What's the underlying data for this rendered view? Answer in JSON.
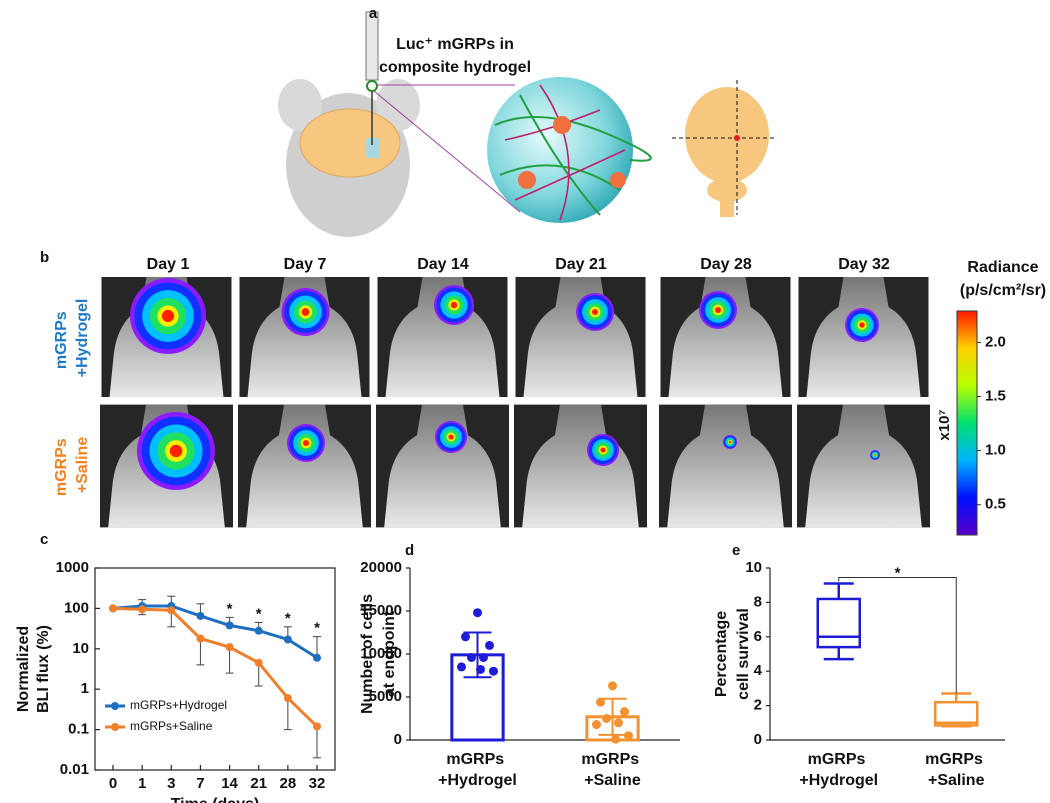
{
  "panel_a": {
    "label": "a",
    "caption": [
      "Luc⁺ mGRPs in",
      "composite hydrogel"
    ]
  },
  "panel_b": {
    "label": "b",
    "days": [
      "Day 1",
      "Day 7",
      "Day 14",
      "Day 21",
      "Day 28",
      "Day 32"
    ],
    "rows": [
      {
        "name": "mGRPs +Hydrogel",
        "color": "#1f78c8"
      },
      {
        "name": "mGRPs +Saline",
        "color": "#f4801f"
      }
    ]
  },
  "chart_data": [
    {
      "type": "colorbar",
      "title": [
        "Radiance",
        "(p/s/cm²/sr)"
      ],
      "scale_label": "x10⁷",
      "ylim": [
        0.22,
        2.29
      ],
      "yticks": [
        0.5,
        {
          "value": 1,
          "label": "1.0"
        },
        1.5,
        {
          "value": 2,
          "label": "2.0"
        }
      ],
      "colors": [
        "#5a00c8",
        "#0010ff",
        "#00b4ff",
        "#00e070",
        "#b8ff00",
        "#ffd000",
        "#ff1a00"
      ]
    },
    {
      "type": "line",
      "panel_label": "c",
      "x_label": "Time (days)",
      "y_label": [
        "Normalized",
        "BLI flux (%)"
      ],
      "categories": [
        "0",
        "1",
        "3",
        "7",
        "14",
        "21",
        "28",
        "32"
      ],
      "log_y": true,
      "ylim": [
        0.01,
        1000
      ],
      "yticks": [
        0.01,
        0.1,
        1,
        10,
        100,
        1000
      ],
      "legend": "lower-left",
      "series": [
        {
          "name": "mGRPs+Hydrogel",
          "color": "#1f6fc0",
          "values": [
            100,
            115,
            115,
            65,
            38,
            28,
            17,
            6
          ],
          "errors": [
            0,
            50,
            85,
            65,
            22,
            17,
            18,
            14
          ],
          "error_direction": "up"
        },
        {
          "name": "mGRPs+Saline",
          "color": "#f07f2c",
          "values": [
            100,
            95,
            90,
            18,
            11,
            4.5,
            0.6,
            0.12
          ],
          "errors": [
            0,
            25,
            55,
            14,
            8.5,
            3.3,
            0.5,
            0.1
          ],
          "error_direction": "down"
        }
      ],
      "significance": {
        "label": "*",
        "categories": [
          "14",
          "21",
          "28",
          "32"
        ]
      }
    },
    {
      "type": "bar",
      "panel_label": "d",
      "y_label": [
        "Number of cells",
        "at endpoint"
      ],
      "categories": [
        "mGRPs +Hydrogel",
        "mGRPs +Saline"
      ],
      "colors": [
        "#1c1cd6",
        "#f39130"
      ],
      "values": [
        9900,
        2700
      ],
      "errors": [
        2600,
        2100
      ],
      "points": [
        [
          14800,
          12000,
          11000,
          9600,
          9600,
          8500,
          8000,
          8200
        ],
        [
          6300,
          4400,
          3300,
          2500,
          2000,
          1800,
          500,
          100
        ]
      ],
      "ylim": [
        0,
        20000
      ],
      "yticks": [
        0,
        5000,
        10000,
        15000,
        20000
      ]
    },
    {
      "type": "box",
      "panel_label": "e",
      "y_label": [
        "Percentage",
        "cell survival"
      ],
      "categories": [
        "mGRPs +Hydrogel",
        "mGRPs +Saline"
      ],
      "colors": [
        "#1c1cd6",
        "#f39130"
      ],
      "boxes": [
        {
          "min": 4.7,
          "q1": 5.4,
          "median": 6,
          "q3": 8.2,
          "max": 9.1
        },
        {
          "min": 0.8,
          "q1": 0.85,
          "median": 1,
          "q3": 2.2,
          "max": 2.7
        }
      ],
      "ylim": [
        0,
        10
      ],
      "yticks": [
        0,
        2,
        4,
        6,
        8,
        10
      ],
      "significance": "*"
    }
  ]
}
